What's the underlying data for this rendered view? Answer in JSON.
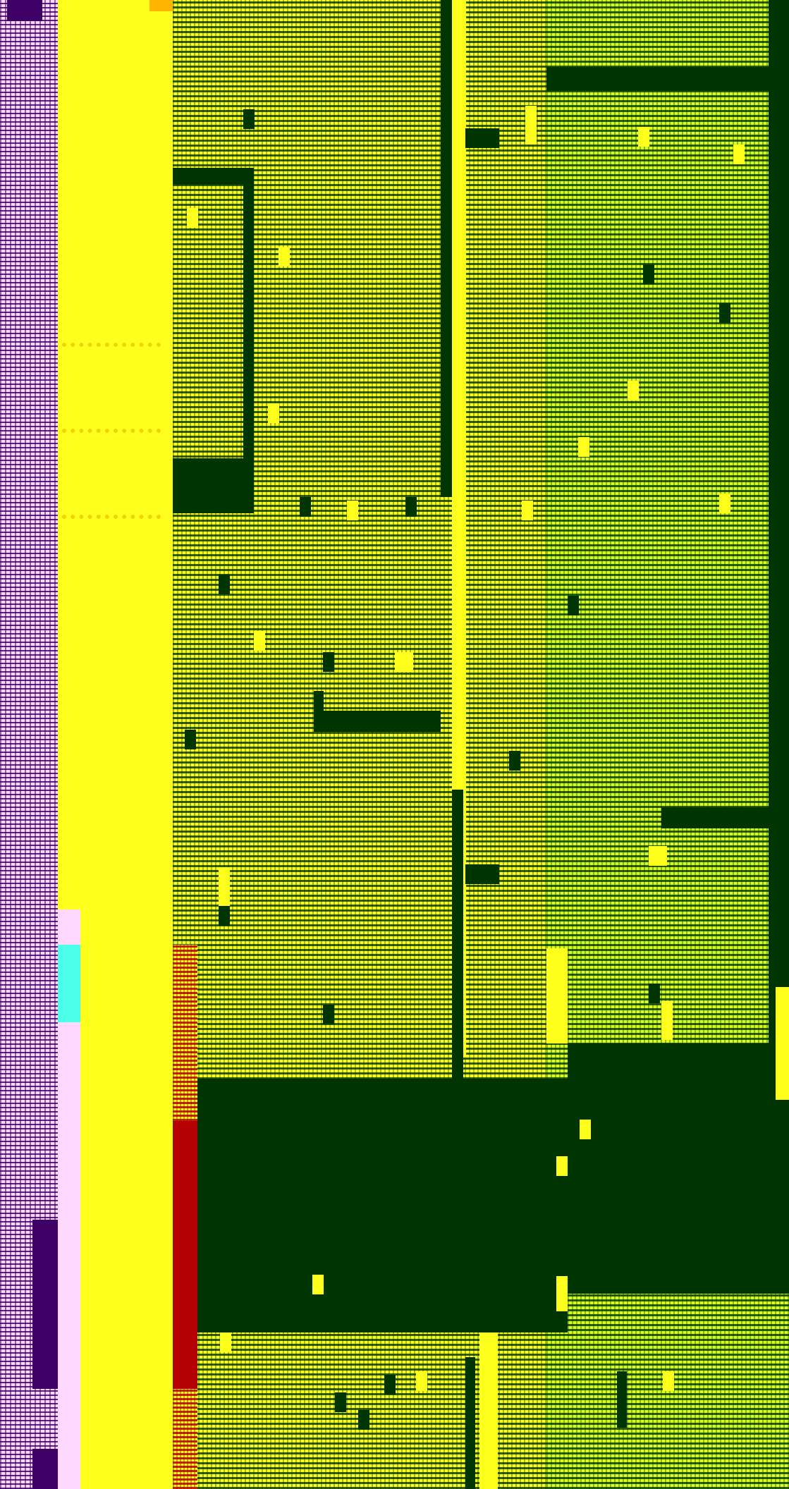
{
  "palette": {
    "pink": "#ffd8ff",
    "purple": "#3e0064",
    "yellow": "#ffff1e",
    "lime": "#d8ff1e",
    "dark_green": "#003400",
    "red": "#b40000",
    "cyan": "#4cffe8"
  }
}
